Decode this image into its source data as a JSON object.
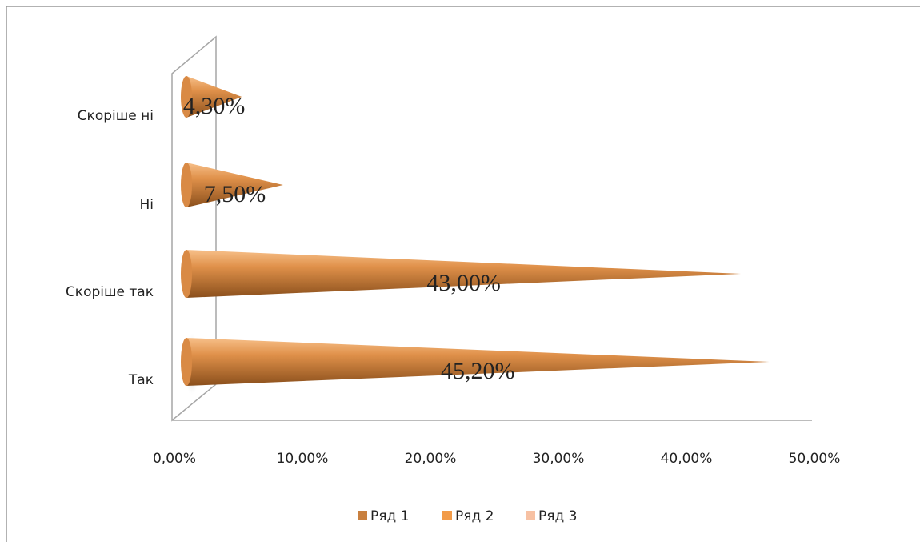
{
  "chart_data": {
    "type": "cone-bar",
    "categories": [
      "Так",
      "Скоріше так",
      "Ні",
      "Скоріше ні"
    ],
    "series": [
      {
        "name": "Ряд 1",
        "color": "#c9803f",
        "values": [
          45.2,
          43,
          7.5,
          4.3
        ],
        "value_labels": [
          "45,20%",
          "43,00%",
          "7,50%",
          "4,30%"
        ]
      },
      {
        "name": "Ряд 2",
        "color": "#f29b48",
        "values": [
          null,
          null,
          null,
          null
        ]
      },
      {
        "name": "Ряд 3",
        "color": "#f7c1a3",
        "values": [
          null,
          null,
          null,
          null
        ]
      }
    ],
    "xlim": [
      0,
      50
    ],
    "xticks": [
      {
        "value": 0,
        "label": "0,00%"
      },
      {
        "value": 10,
        "label": "10,00%"
      },
      {
        "value": 20,
        "label": "20,00%"
      },
      {
        "value": 30,
        "label": "30,00%"
      },
      {
        "value": 40,
        "label": "40,00%"
      },
      {
        "value": 50,
        "label": "50,00%"
      }
    ],
    "legend": "bottom"
  }
}
